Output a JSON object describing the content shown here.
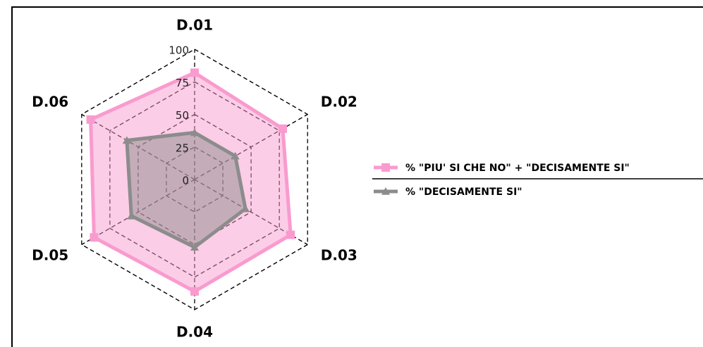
{
  "chart_data": {
    "type": "radar",
    "categories": [
      "D.01",
      "D.02",
      "D.03",
      "D.04",
      "D.05",
      "D.06"
    ],
    "series": [
      {
        "name": "% \"PIU' SI CHE NO\" + \"DECISAMENTE SI\"",
        "color": "#f99bcf",
        "marker": "square",
        "values": [
          82,
          78,
          85,
          86,
          89,
          92
        ]
      },
      {
        "name": "% \"DECISAMENTE SI\"",
        "color": "#8c8c8c",
        "marker": "triangle",
        "values": [
          36,
          36,
          45,
          52,
          56,
          60
        ]
      }
    ],
    "ylim": [
      0,
      100
    ],
    "yticks": [
      0,
      25,
      50,
      75,
      100
    ],
    "grid": true,
    "legend": "right"
  }
}
